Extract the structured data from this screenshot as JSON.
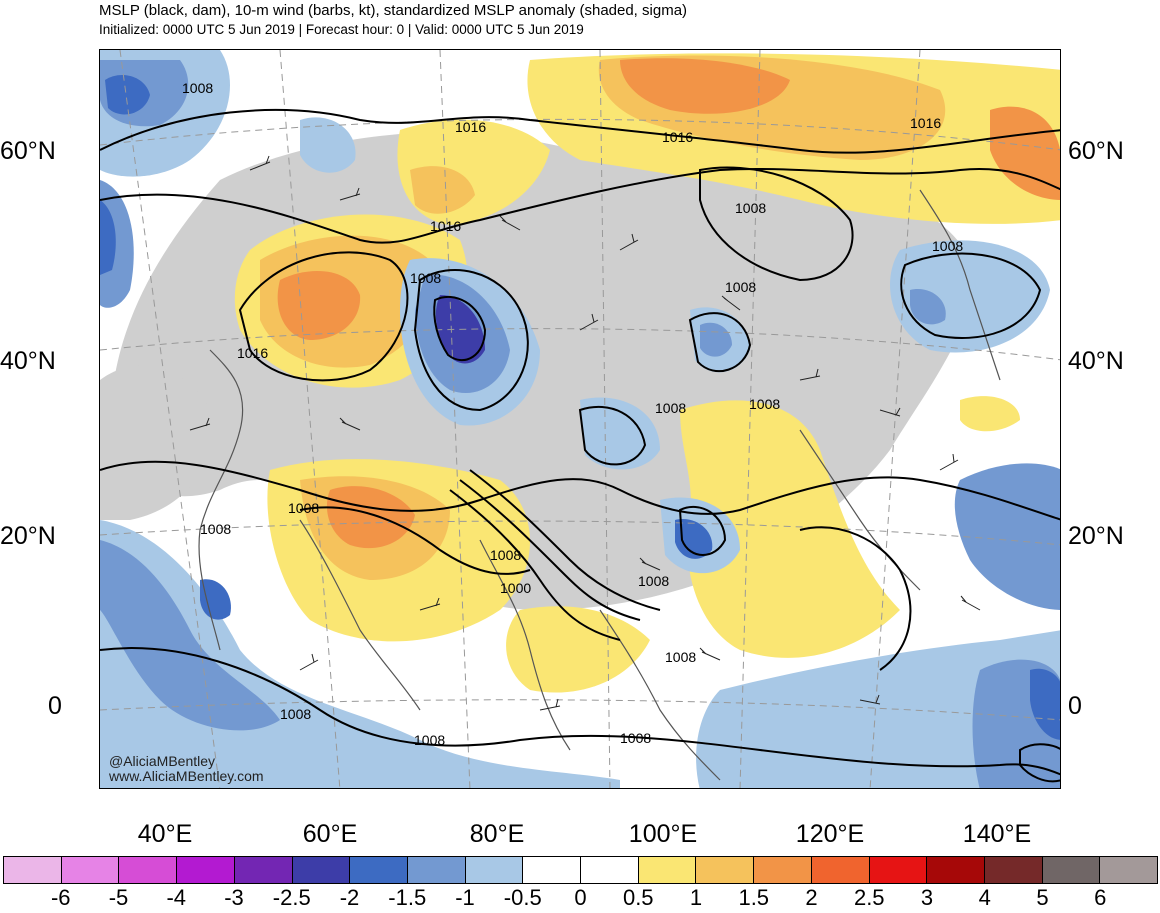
{
  "header": {
    "title": "MSLP (black, dam), 10-m wind (barbs, kt), standardized MSLP anomaly (shaded, sigma)",
    "subtitle": "Initialized: 0000 UTC 5 Jun 2019 | Forecast hour: 0 | Valid: 0000 UTC 5 Jun 2019"
  },
  "map": {
    "lat_labels_left": [
      "60°N",
      "40°N",
      "20°N",
      "0"
    ],
    "lat_labels_right": [
      "60°N",
      "40°N",
      "20°N",
      "0"
    ],
    "lon_labels": [
      "40°E",
      "60°E",
      "80°E",
      "100°E",
      "120°E",
      "140°E"
    ],
    "isobar_labels": [
      "1008",
      "1016",
      "1016",
      "1016",
      "1016",
      "1008",
      "1008",
      "1008",
      "1008",
      "1008",
      "1016",
      "1008",
      "1008",
      "1008",
      "1008",
      "1000",
      "1008",
      "1008",
      "1008",
      "1008",
      "1008"
    ],
    "credit_handle": "@AliciaMBentley",
    "credit_site": "www.AliciaMBentley.com"
  },
  "colorbar": {
    "labels": [
      "-6",
      "-5",
      "-4",
      "-3",
      "-2.5",
      "-2",
      "-1.5",
      "-1",
      "-0.5",
      "0",
      "0.5",
      "1",
      "1.5",
      "2",
      "2.5",
      "3",
      "4",
      "5",
      "6"
    ],
    "colors": [
      "#ebb6e8",
      "#e683e6",
      "#d64dd6",
      "#b31ad1",
      "#7326b3",
      "#3d3da8",
      "#3d6bc2",
      "#7399d1",
      "#a8c8e6",
      "#ffffff",
      "#ffffff",
      "#fae673",
      "#f5c25c",
      "#f29447",
      "#f0642e",
      "#e61414",
      "#a60808",
      "#752929",
      "#706666",
      "#a39999"
    ]
  }
}
